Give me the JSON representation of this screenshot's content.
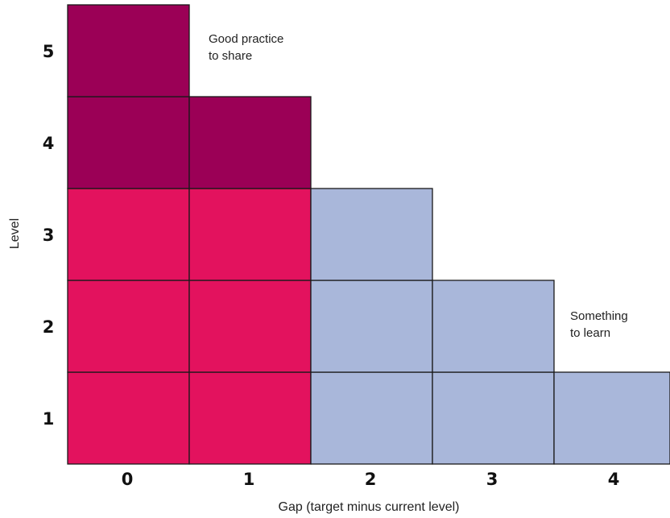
{
  "diagram": {
    "x_axis_title": "Gap (target minus current level)",
    "y_axis_title": "Level",
    "x_ticks": [
      "0",
      "1",
      "2",
      "3",
      "4"
    ],
    "y_ticks": [
      "1",
      "2",
      "3",
      "4",
      "5"
    ],
    "annotations": {
      "good_practice": [
        "Good practice",
        "to share"
      ],
      "something_to_learn": [
        "Something",
        "to learn"
      ]
    },
    "colors": {
      "good_practice": "#9B0056",
      "on_target": "#E3125E",
      "to_learn": "#A9B7DA",
      "cell_border": "#1a1a1a"
    },
    "columns": [
      {
        "gap": "0",
        "top_level": 5,
        "cells": [
          "on_target",
          "on_target",
          "on_target",
          "good_practice",
          "good_practice"
        ]
      },
      {
        "gap": "1",
        "top_level": 4,
        "cells": [
          "on_target",
          "on_target",
          "on_target",
          "good_practice"
        ]
      },
      {
        "gap": "2",
        "top_level": 3,
        "cells": [
          "to_learn",
          "to_learn",
          "to_learn"
        ]
      },
      {
        "gap": "3",
        "top_level": 2,
        "cells": [
          "to_learn",
          "to_learn"
        ]
      },
      {
        "gap": "4",
        "top_level": 1,
        "cells": [
          "to_learn"
        ]
      }
    ]
  }
}
